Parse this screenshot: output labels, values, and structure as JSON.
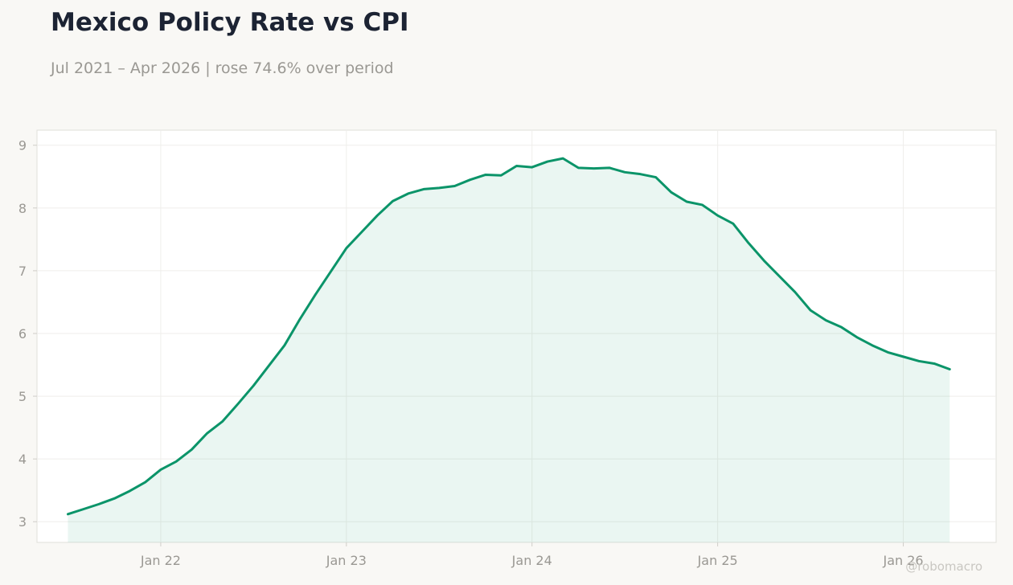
{
  "header": {
    "title": "Mexico Policy Rate vs CPI",
    "subtitle": "Jul 2021 – Apr 2026 | rose 74.6% over period"
  },
  "watermark": "@robomacro",
  "colors": {
    "line": "#0b9469",
    "fill": "#0b9469",
    "background": "#f9f8f5",
    "plot_background": "#ffffff",
    "grid": "#efeeeb"
  },
  "chart_data": {
    "type": "area",
    "title": "Mexico Policy Rate vs CPI",
    "subtitle": "Jul 2021 – Apr 2026 | rose 74.6% over period",
    "xlabel": "",
    "ylabel": "",
    "x_ticks": [
      "Jan 22",
      "Jan 23",
      "Jan 24",
      "Jan 25",
      "Jan 26"
    ],
    "y_ticks": [
      3,
      4,
      5,
      6,
      7,
      8,
      9
    ],
    "ylim": [
      2.67,
      9.24
    ],
    "xlim": [
      "2021-05",
      "2026-07"
    ],
    "grid": true,
    "series": [
      {
        "values": [
          [
            "2021-07",
            3.12
          ],
          [
            "2021-08",
            3.2
          ],
          [
            "2021-09",
            3.28
          ],
          [
            "2021-10",
            3.37
          ],
          [
            "2021-11",
            3.49
          ],
          [
            "2021-12",
            3.63
          ],
          [
            "2022-01",
            3.83
          ],
          [
            "2022-02",
            3.96
          ],
          [
            "2022-03",
            4.15
          ],
          [
            "2022-04",
            4.41
          ],
          [
            "2022-05",
            4.6
          ],
          [
            "2022-06",
            4.88
          ],
          [
            "2022-07",
            5.17
          ],
          [
            "2022-08",
            5.49
          ],
          [
            "2022-09",
            5.81
          ],
          [
            "2022-10",
            6.23
          ],
          [
            "2022-11",
            6.62
          ],
          [
            "2022-12",
            6.99
          ],
          [
            "2023-01",
            7.36
          ],
          [
            "2023-02",
            7.62
          ],
          [
            "2023-03",
            7.88
          ],
          [
            "2023-04",
            8.11
          ],
          [
            "2023-05",
            8.23
          ],
          [
            "2023-06",
            8.3
          ],
          [
            "2023-07",
            8.32
          ],
          [
            "2023-08",
            8.35
          ],
          [
            "2023-09",
            8.45
          ],
          [
            "2023-10",
            8.53
          ],
          [
            "2023-11",
            8.52
          ],
          [
            "2023-12",
            8.67
          ],
          [
            "2024-01",
            8.65
          ],
          [
            "2024-02",
            8.74
          ],
          [
            "2024-03",
            8.79
          ],
          [
            "2024-04",
            8.64
          ],
          [
            "2024-05",
            8.63
          ],
          [
            "2024-06",
            8.64
          ],
          [
            "2024-07",
            8.57
          ],
          [
            "2024-08",
            8.54
          ],
          [
            "2024-09",
            8.49
          ],
          [
            "2024-10",
            8.25
          ],
          [
            "2024-11",
            8.1
          ],
          [
            "2024-12",
            8.05
          ],
          [
            "2025-01",
            7.88
          ],
          [
            "2025-02",
            7.75
          ],
          [
            "2025-03",
            7.44
          ],
          [
            "2025-04",
            7.16
          ],
          [
            "2025-05",
            6.91
          ],
          [
            "2025-06",
            6.66
          ],
          [
            "2025-07",
            6.37
          ],
          [
            "2025-08",
            6.21
          ],
          [
            "2025-09",
            6.1
          ],
          [
            "2025-10",
            5.94
          ],
          [
            "2025-11",
            5.81
          ],
          [
            "2025-12",
            5.7
          ],
          [
            "2026-01",
            5.63
          ],
          [
            "2026-02",
            5.56
          ],
          [
            "2026-03",
            5.52
          ],
          [
            "2026-04",
            5.43
          ]
        ]
      }
    ]
  }
}
